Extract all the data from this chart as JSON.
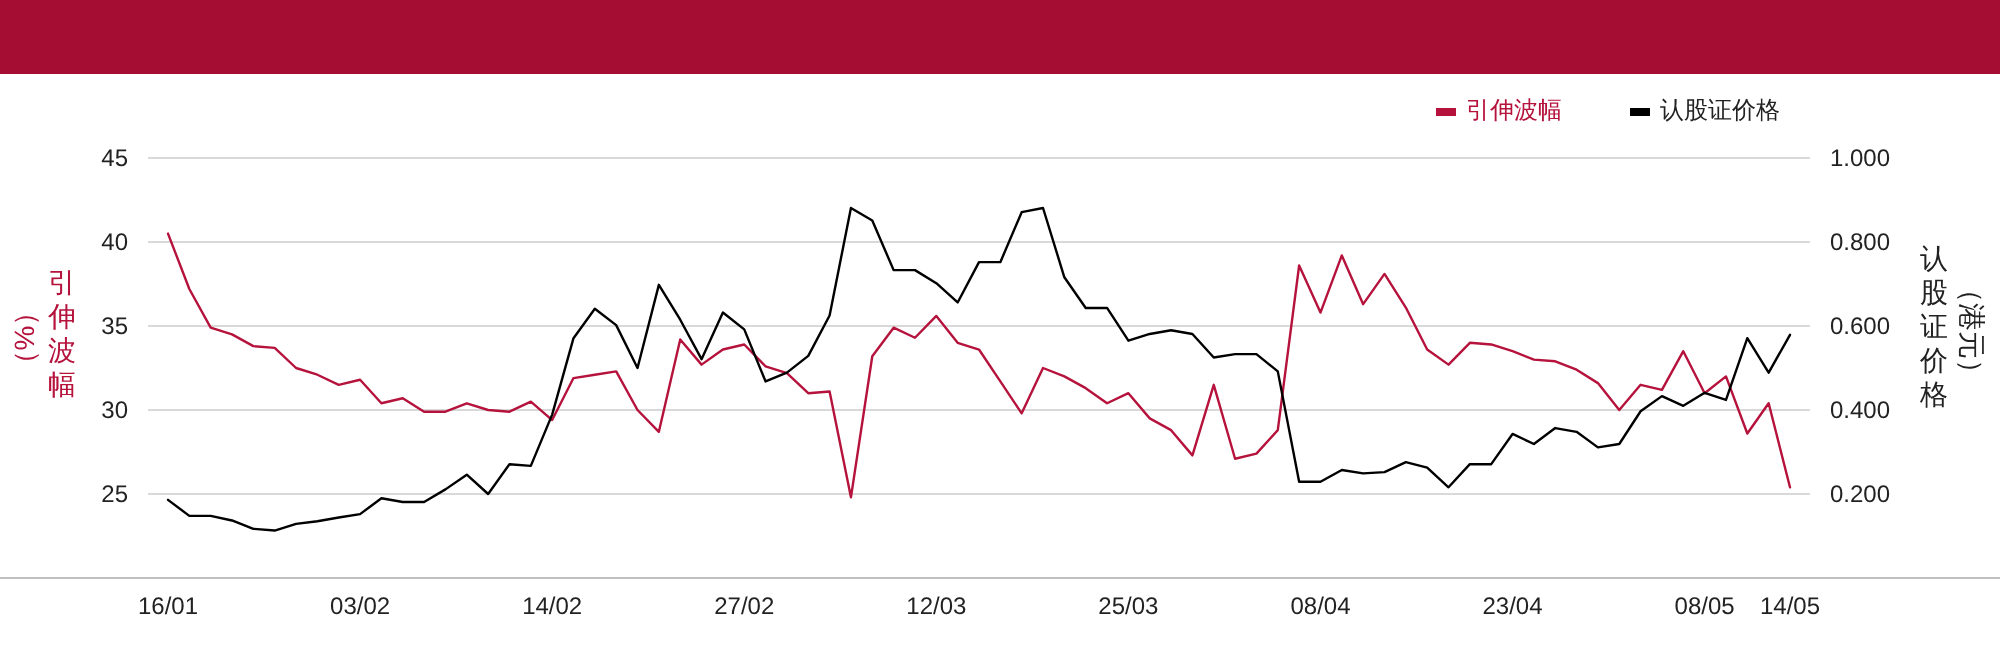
{
  "chart_data": {
    "type": "line",
    "categories": [
      "16/01",
      null,
      null,
      null,
      null,
      null,
      null,
      null,
      null,
      "03/02",
      null,
      null,
      null,
      null,
      null,
      null,
      null,
      null,
      "14/02",
      null,
      null,
      null,
      null,
      null,
      null,
      null,
      null,
      "27/02",
      null,
      null,
      null,
      null,
      null,
      null,
      null,
      null,
      "12/03",
      null,
      null,
      null,
      null,
      null,
      null,
      null,
      null,
      "25/03",
      null,
      null,
      null,
      null,
      null,
      null,
      null,
      null,
      "08/04",
      null,
      null,
      null,
      null,
      null,
      null,
      null,
      null,
      "23/04",
      null,
      null,
      null,
      null,
      null,
      null,
      null,
      null,
      "08/05",
      null,
      null,
      null,
      "14/05"
    ],
    "series": [
      {
        "name": "引伸波幅",
        "color": "#b5123c",
        "values": [
          40.5,
          37.2,
          34.9,
          34.5,
          33.8,
          33.7,
          32.5,
          32.1,
          31.5,
          31.8,
          30.4,
          30.7,
          29.9,
          29.9,
          30.4,
          30.0,
          29.9,
          30.5,
          29.4,
          31.9,
          32.1,
          32.3,
          30.0,
          28.7,
          34.2,
          32.7,
          33.6,
          33.9,
          32.6,
          32.2,
          31.0,
          31.1,
          24.8,
          33.2,
          34.9,
          34.3,
          35.6,
          34.0,
          33.6,
          31.7,
          29.8,
          32.5,
          32.0,
          31.3,
          30.4,
          31.0,
          29.5,
          28.8,
          27.3,
          31.5,
          27.1,
          27.4,
          28.8,
          38.6,
          35.8,
          39.2,
          36.3,
          38.1,
          36.1,
          33.6,
          32.7,
          34.0,
          33.9,
          33.5,
          33.0,
          32.9,
          32.4,
          31.6,
          30.0,
          31.5,
          31.2,
          33.5,
          31.0,
          32.0,
          28.6,
          30.4,
          25.4
        ]
      },
      {
        "name": "认股证价格",
        "color": "#000000",
        "axis": "y2",
        "values": [
          0.186,
          0.148,
          0.148,
          0.137,
          0.117,
          0.113,
          0.129,
          0.135,
          0.144,
          0.152,
          0.19,
          0.181,
          0.181,
          0.211,
          0.246,
          0.2,
          0.271,
          0.267,
          0.389,
          0.571,
          0.641,
          0.602,
          0.5,
          0.698,
          0.615,
          0.521,
          0.632,
          0.592,
          0.468,
          0.489,
          0.529,
          0.625,
          0.881,
          0.851,
          0.733,
          0.733,
          0.702,
          0.656,
          0.752,
          0.752,
          0.871,
          0.881,
          0.716,
          0.643,
          0.643,
          0.565,
          0.581,
          0.59,
          0.581,
          0.525,
          0.533,
          0.533,
          0.492,
          0.229,
          0.229,
          0.257,
          0.249,
          0.252,
          0.276,
          0.263,
          0.216,
          0.271,
          0.271,
          0.343,
          0.319,
          0.357,
          0.348,
          0.311,
          0.319,
          0.397,
          0.433,
          0.41,
          0.441,
          0.424,
          0.571,
          0.489,
          0.579
        ]
      }
    ],
    "ylabel": "引伸波幅（%）",
    "y2label": "认股证价格（港元）",
    "ylim": [
      20,
      45
    ],
    "yticks": [
      25,
      30,
      35,
      40,
      45
    ],
    "y2lim": [
      0,
      1
    ],
    "y2ticks": [
      {
        "value": 0.2,
        "label": "0.200"
      },
      {
        "value": 0.4,
        "label": "0.400"
      },
      {
        "value": 0.6,
        "label": "0.600"
      },
      {
        "value": 0.8,
        "label": "0.800"
      },
      {
        "value": 1,
        "label": "1.000"
      }
    ],
    "grid": "y",
    "legend": "top right",
    "marker": "none",
    "line_style": "solid"
  }
}
